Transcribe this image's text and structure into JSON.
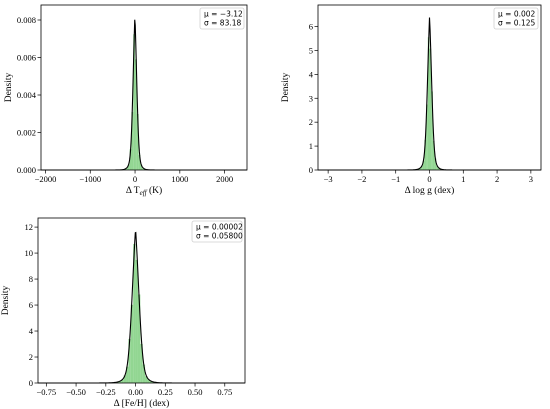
{
  "colors": {
    "bar": "#7fcf7f",
    "bar_edge": "#5cb85c",
    "curve": "#000000"
  },
  "chart_data": [
    {
      "type": "bar",
      "id": "teff",
      "xlabel_main": "Δ T",
      "xlabel_sub": "eff",
      "xlabel_tail": " (K)",
      "ylabel": "Density",
      "xlim": [
        -2100,
        2500
      ],
      "ylim": [
        0,
        0.0088
      ],
      "xticks": [
        -2000,
        -1000,
        0,
        1000,
        2000
      ],
      "xtick_labels": [
        "−2000",
        "−1000",
        "0",
        "1000",
        "2000"
      ],
      "yticks": [
        0,
        0.002,
        0.004,
        0.006,
        0.008
      ],
      "ytick_labels": [
        "0.000",
        "0.002",
        "0.004",
        "0.006",
        "0.008"
      ],
      "legend": {
        "mu_label": "μ = −3.12",
        "sigma_label": "σ = 83.18"
      },
      "mu": -3.12,
      "sigma": 83.18,
      "peak": 0.0083,
      "bins": {
        "start": -800,
        "width": 40,
        "count": 40
      }
    },
    {
      "type": "bar",
      "id": "logg",
      "xlabel_main": "Δ log g (dex)",
      "xlabel_sub": "",
      "xlabel_tail": "",
      "ylabel": "Density",
      "xlim": [
        -3.3,
        3.3
      ],
      "ylim": [
        0,
        6.9
      ],
      "xticks": [
        -3,
        -2,
        -1,
        0,
        1,
        2,
        3
      ],
      "xtick_labels": [
        "−3",
        "−2",
        "−1",
        "0",
        "1",
        "2",
        "3"
      ],
      "yticks": [
        0,
        1,
        2,
        3,
        4,
        5,
        6
      ],
      "ytick_labels": [
        "0",
        "1",
        "2",
        "3",
        "4",
        "5",
        "6"
      ],
      "legend": {
        "mu_label": "μ = 0.002",
        "sigma_label": "σ = 0.125"
      },
      "mu": 0.002,
      "sigma": 0.125,
      "peak": 6.45,
      "bins": {
        "start": -1.0,
        "width": 0.05,
        "count": 40
      }
    },
    {
      "type": "bar",
      "id": "feh",
      "xlabel_main": "Δ [Fe/H] (dex)",
      "xlabel_sub": "",
      "xlabel_tail": "",
      "ylabel": "Density",
      "xlim": [
        -0.82,
        0.92
      ],
      "ylim": [
        0,
        12.7
      ],
      "xticks": [
        -0.75,
        -0.5,
        -0.25,
        0,
        0.25,
        0.5,
        0.75
      ],
      "xtick_labels": [
        "−0.75",
        "−0.50",
        "−0.25",
        "0.00",
        "0.25",
        "0.50",
        "0.75"
      ],
      "yticks": [
        0,
        2,
        4,
        6,
        8,
        10,
        12
      ],
      "ytick_labels": [
        "0",
        "2",
        "4",
        "6",
        "8",
        "10",
        "12"
      ],
      "legend": {
        "mu_label": "μ = 0.00002",
        "sigma_label": "σ = 0.05800"
      },
      "mu": 2e-05,
      "sigma": 0.058,
      "peak": 11.9,
      "bins": {
        "start": -0.4,
        "width": 0.02,
        "count": 40
      }
    }
  ]
}
